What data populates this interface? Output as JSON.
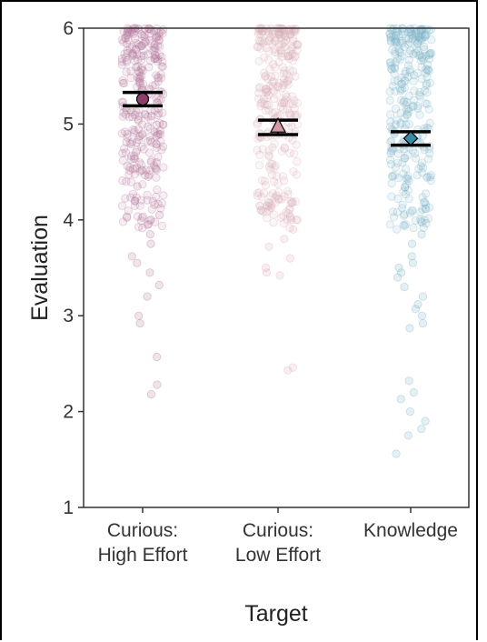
{
  "chart_data": {
    "type": "scatter",
    "xlabel": "Target",
    "ylabel": "Evaluation",
    "ylim": [
      1,
      6
    ],
    "yticks": [
      1,
      2,
      3,
      4,
      5,
      6
    ],
    "grid": false,
    "categories": [
      [
        "Curious:",
        "High Effort"
      ],
      [
        "Curious:",
        "Low Effort"
      ],
      [
        "Knowledge"
      ]
    ],
    "series": [
      {
        "category_index": 0,
        "color": "#8c3f6b",
        "point_color": "#b5779b",
        "marker": "circle",
        "mean": 5.26,
        "ci": [
          5.19,
          5.33
        ],
        "low_points": [
          4.6,
          4.45,
          4.35,
          4.2,
          4.05,
          3.95,
          3.85,
          3.75,
          3.62,
          3.55,
          3.45,
          3.32,
          3.2,
          3.0,
          2.92,
          2.57,
          2.28,
          2.18
        ]
      },
      {
        "category_index": 1,
        "color": "#d69aa4",
        "point_color": "#dbb0b8",
        "marker": "triangle",
        "mean": 4.97,
        "ci": [
          4.89,
          5.04
        ],
        "low_points": [
          4.25,
          4.1,
          4.0,
          3.9,
          3.8,
          3.72,
          3.6,
          3.5,
          3.45,
          3.42,
          2.46,
          2.43
        ]
      },
      {
        "category_index": 2,
        "color": "#3a8aa6",
        "point_color": "#7fb4c6",
        "marker": "diamond",
        "mean": 4.85,
        "ci": [
          4.78,
          4.92
        ],
        "low_points": [
          3.85,
          3.75,
          3.62,
          3.55,
          3.5,
          3.45,
          3.4,
          3.3,
          3.2,
          3.12,
          3.07,
          3.0,
          2.92,
          2.87,
          2.32,
          2.2,
          2.13,
          2.0,
          1.9,
          1.82,
          1.75,
          1.56
        ]
      }
    ]
  }
}
